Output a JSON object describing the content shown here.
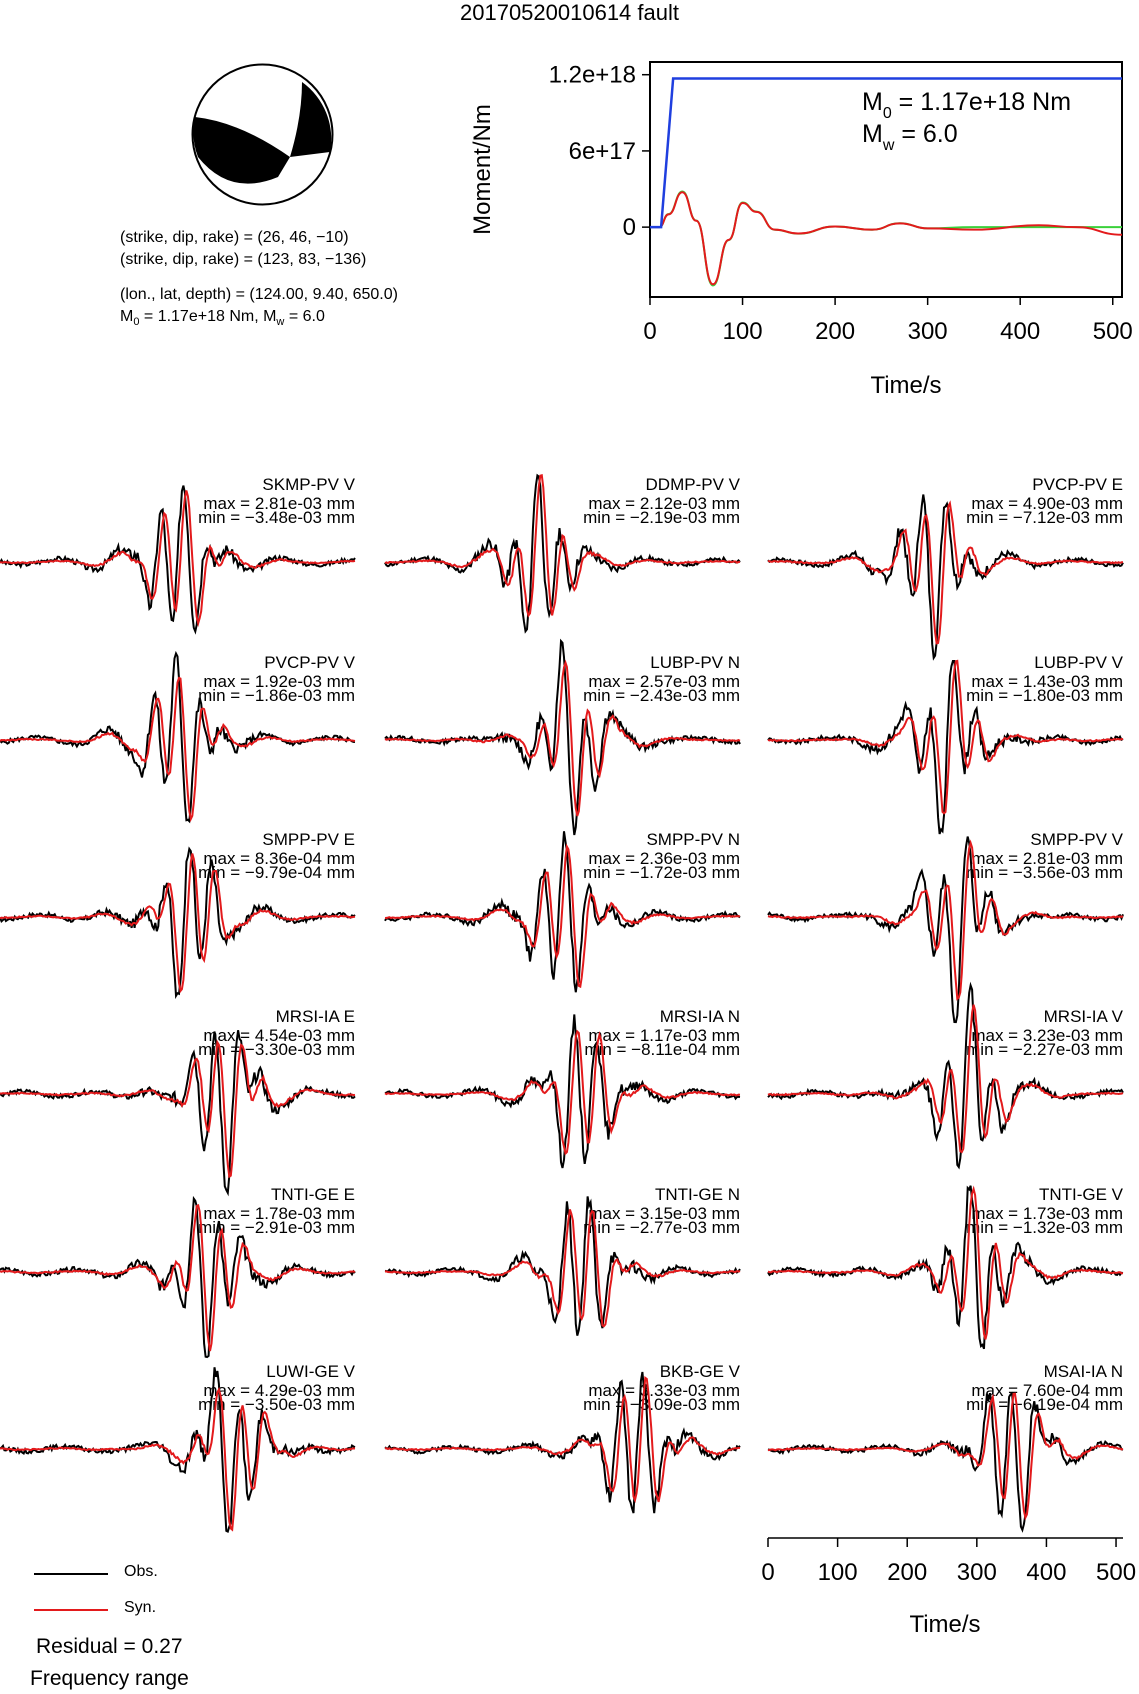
{
  "title": "20170520010614 fault",
  "mechanism": {
    "nodal_plane_1": "(strike, dip, rake) = (26, 46, −10)",
    "nodal_plane_2": "(strike, dip, rake) = (123, 83, −136)",
    "location": "(lon., lat, depth) = (124.00, 9.40, 650.0)",
    "moment_prefix": "M",
    "moment_sub": "0",
    "moment_mid": " = 1.17e+18 Nm, M",
    "moment_sub2": "w",
    "moment_tail": " = 6.0"
  },
  "colors": {
    "obs": "#000000",
    "syn": "#e31a1c",
    "moment": "#1f3fdf",
    "moment_green": "#3ad13a"
  },
  "legend": {
    "obs": "Obs.",
    "syn": "Syn.",
    "residual": "Residual = 0.27",
    "freq": "Frequency range"
  },
  "chart_data": [
    {
      "type": "line",
      "title": "",
      "xlabel": "Time/s",
      "ylabel": "Moment/Nm",
      "xlim": [
        0,
        510
      ],
      "ylim": [
        -5.5e+17,
        1.3e+18
      ],
      "xticks": [
        "0",
        "100",
        "200",
        "300",
        "400",
        "500"
      ],
      "yticks": [
        "1.2e+18",
        "6e+17",
        "0"
      ],
      "annotation": {
        "m0_label": "M",
        "m0_sub": "0",
        "m0_value": " = 1.17e+18 Nm",
        "mw_label": "M",
        "mw_sub": "w",
        "mw_value": " = 6.0"
      },
      "series": [
        {
          "name": "",
          "x": [
            0,
            12,
            25,
            510
          ],
          "y": [
            0,
            0,
            1.17e+18,
            1.17e+18
          ]
        },
        {
          "name": "",
          "x": [
            0,
            10,
            20,
            35,
            50,
            68,
            85,
            100,
            115,
            135,
            160,
            200,
            240,
            270,
            300,
            350,
            420,
            460,
            510
          ],
          "y": [
            0,
            0,
            1e+17,
            2.75e+17,
            5e+16,
            -4.5e+17,
            -1e+17,
            1.9e+17,
            1.2e+17,
            -2e+16,
            -5e+16,
            5000000000000000.0,
            -2e+16,
            3e+16,
            -1e+16,
            -2e+16,
            1.5e+16,
            0.0,
            -6e+16
          ]
        }
      ]
    },
    {
      "type": "line",
      "xlabel": "Time/s",
      "xlim": [
        0,
        510
      ],
      "xticks": [
        "0",
        "100",
        "200",
        "300",
        "400",
        "500"
      ],
      "traces": [
        {
          "station": "SKMP-PV V",
          "max": "max = 2.81e-03 mm",
          "min": "min = −3.48e-03 mm"
        },
        {
          "station": "DDMP-PV V",
          "max": "max = 2.12e-03 mm",
          "min": "min = −2.19e-03 mm"
        },
        {
          "station": "PVCP-PV E",
          "max": "max = 4.90e-03 mm",
          "min": "min = −7.12e-03 mm"
        },
        {
          "station": "PVCP-PV V",
          "max": "max = 1.92e-03 mm",
          "min": "min = −1.86e-03 mm"
        },
        {
          "station": "LUBP-PV N",
          "max": "max = 2.57e-03 mm",
          "min": "min = −2.43e-03 mm"
        },
        {
          "station": "LUBP-PV V",
          "max": "max = 1.43e-03 mm",
          "min": "min = −1.80e-03 mm"
        },
        {
          "station": "SMPP-PV E",
          "max": "max = 8.36e-04 mm",
          "min": "min = −9.79e-04 mm"
        },
        {
          "station": "SMPP-PV N",
          "max": "max = 2.36e-03 mm",
          "min": "min = −1.72e-03 mm"
        },
        {
          "station": "SMPP-PV V",
          "max": "max = 2.81e-03 mm",
          "min": "min = −3.56e-03 mm"
        },
        {
          "station": "MRSI-IA E",
          "max": "max = 4.54e-03 mm",
          "min": "min = −3.30e-03 mm"
        },
        {
          "station": "MRSI-IA N",
          "max": "max = 1.17e-03 mm",
          "min": "min = −8.11e-04 mm"
        },
        {
          "station": "MRSI-IA V",
          "max": "max = 3.23e-03 mm",
          "min": "min = −2.27e-03 mm"
        },
        {
          "station": "TNTI-GE E",
          "max": "max = 1.78e-03 mm",
          "min": "min = −2.91e-03 mm"
        },
        {
          "station": "TNTI-GE N",
          "max": "max = 3.15e-03 mm",
          "min": "min = −2.77e-03 mm"
        },
        {
          "station": "TNTI-GE V",
          "max": "max = 1.73e-03 mm",
          "min": "min = −1.32e-03 mm"
        },
        {
          "station": "LUWI-GE V",
          "max": "max = 4.29e-03 mm",
          "min": "min = −3.50e-03 mm"
        },
        {
          "station": "BKB-GE V",
          "max": "max = 3.33e-03 mm",
          "min": "min = −3.09e-03 mm"
        },
        {
          "station": "MSAI-IA N",
          "max": "max = 7.60e-04 mm",
          "min": "min = −6.19e-04 mm"
        }
      ]
    }
  ]
}
